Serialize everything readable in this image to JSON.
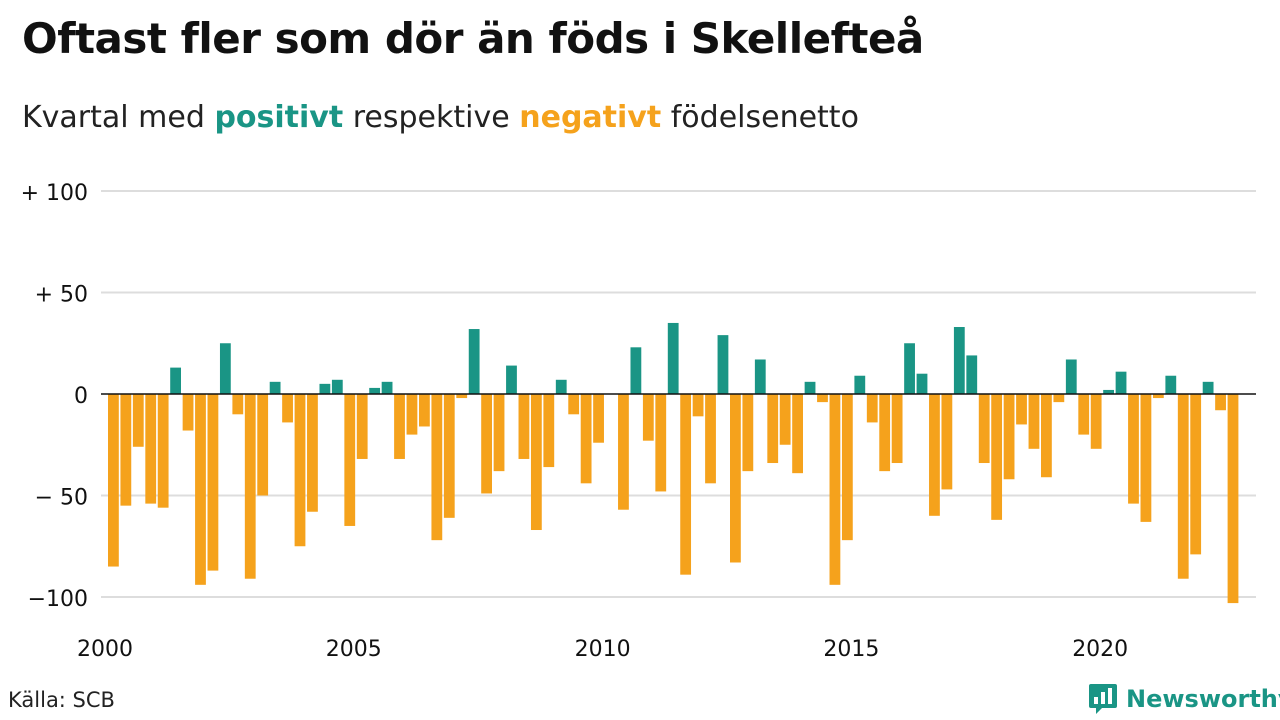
{
  "header": {
    "title": "Oftast fler som dör än föds i Skellefteå",
    "subtitle_prefix": "Kvartal med",
    "subtitle_positive": "positivt",
    "subtitle_middle": "respektive",
    "subtitle_negative": "negativt",
    "subtitle_suffix": "födelsenetto"
  },
  "footer": {
    "source": "Källa: SCB",
    "brand": "Newsworthy",
    "brand_icon": "newsworthy-logo-icon"
  },
  "colors": {
    "positive": "#1a9585",
    "negative": "#f5a21c",
    "grid": "#dddddd",
    "zero_line": "#111111"
  },
  "chart_data": {
    "type": "bar",
    "x_start": "2000 Q1",
    "x_end": "2023 Q1",
    "xtick_labels": [
      "2000",
      "2005",
      "2010",
      "2015",
      "2020"
    ],
    "ytick_labels": [
      "+ 100",
      "+  50",
      "0",
      "− 50",
      "−100"
    ],
    "ytick_values": [
      100,
      50,
      0,
      -50,
      -100
    ],
    "ylim": [
      -105,
      100
    ],
    "grid": true,
    "series": [
      {
        "values": [
          -85,
          -55,
          -26,
          -54,
          -56,
          13,
          -18,
          -94,
          -87,
          25,
          -10,
          -91,
          -50,
          6,
          -14,
          -75,
          -58,
          5,
          7,
          -65,
          -32,
          3,
          6,
          -32,
          -20,
          -16,
          -72,
          -61,
          -2,
          32,
          -49,
          -38,
          14,
          -32,
          -67,
          -36,
          7,
          -10,
          -44,
          -24,
          0,
          -57,
          23,
          -23,
          -48,
          35,
          -89,
          -11,
          -44,
          29,
          -83,
          -38,
          17,
          -34,
          -25,
          -39,
          6,
          -4,
          -94,
          -72,
          9,
          -14,
          -38,
          -34,
          25,
          10,
          -60,
          -47,
          33,
          19,
          -34,
          -62,
          -42,
          -15,
          -27,
          -41,
          -4,
          17,
          -20,
          -27,
          2,
          11,
          -54,
          -63,
          -2,
          9,
          -91,
          -79,
          6,
          -8,
          -103
        ]
      }
    ]
  }
}
